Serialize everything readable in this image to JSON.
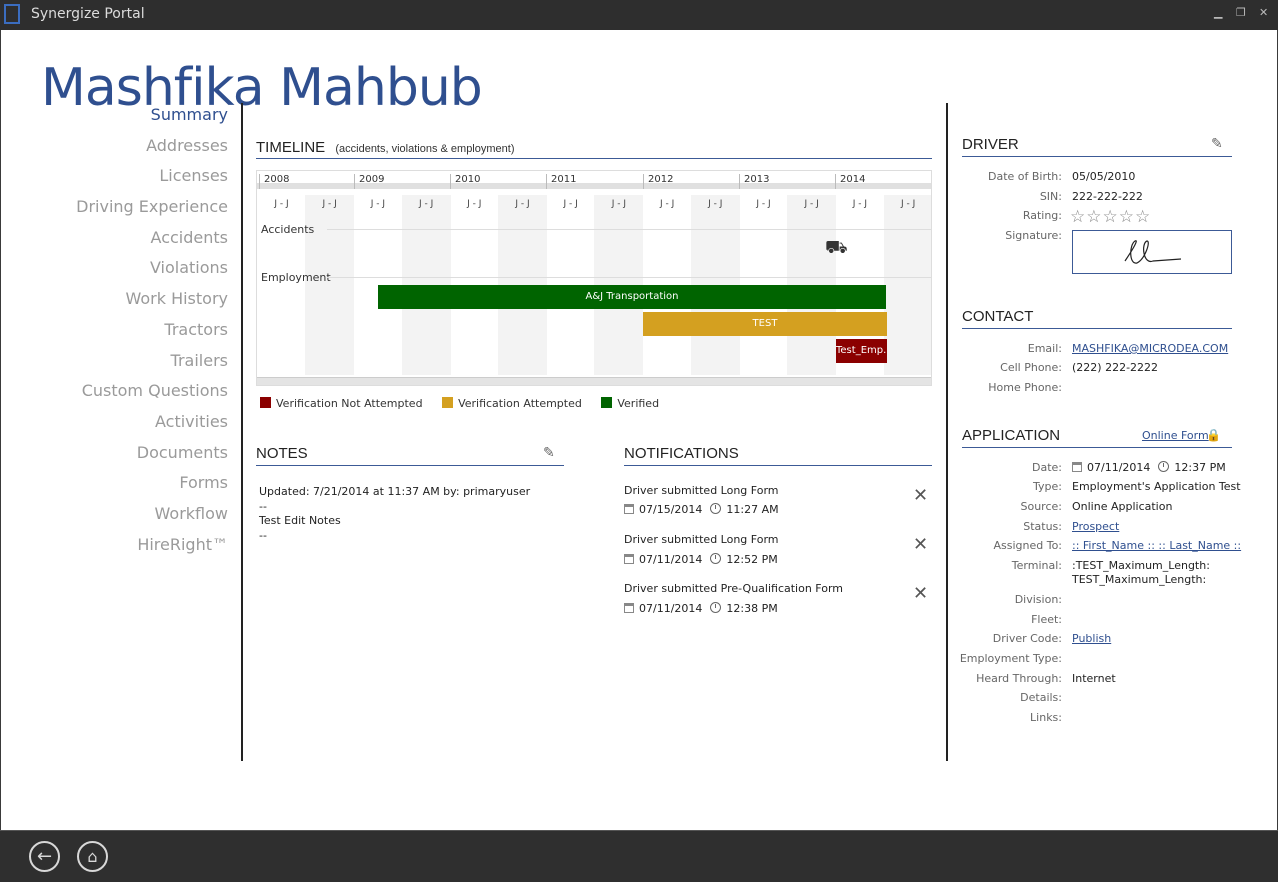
{
  "window": {
    "title": "Synergize Portal"
  },
  "page": {
    "title": "Mashfika Mahbub"
  },
  "nav": [
    "Summary",
    "Addresses",
    "Licenses",
    "Driving Experience",
    "Accidents",
    "Violations",
    "Work History",
    "Tractors",
    "Trailers",
    "Custom Questions",
    "Activities",
    "Documents",
    "Forms",
    "Workflow",
    "HireRight™"
  ],
  "timeline": {
    "title": "TIMELINE",
    "subtitle": "(accidents, violations & employment)",
    "years": [
      "2008",
      "2009",
      "2010",
      "2011",
      "2012",
      "2013",
      "2014"
    ],
    "half_label": "J - J",
    "accidents_label": "Accidents",
    "employment_label": "Employment",
    "bars": [
      {
        "label": "A&J Transportation",
        "color": "#006400"
      },
      {
        "label": "TEST",
        "color": "#d4a020"
      },
      {
        "label": "Test_Emp...",
        "color": "#8b0000"
      }
    ],
    "accident_icon": "car-crash-icon"
  },
  "legend": [
    {
      "label": "Verification Not Attempted",
      "color": "#8b0000"
    },
    {
      "label": "Verification Attempted",
      "color": "#d4a020"
    },
    {
      "label": "Verified",
      "color": "#006400"
    }
  ],
  "notes": {
    "title": "NOTES",
    "updated": "Updated: 7/21/2014 at 11:37 AM by: primaryuser",
    "sep1": "--",
    "text": "Test Edit Notes",
    "sep2": "--"
  },
  "notifications": {
    "title": "NOTIFICATIONS",
    "items": [
      {
        "title": "Driver submitted Long Form",
        "date": "07/15/2014",
        "time": "11:27 AM"
      },
      {
        "title": "Driver submitted Long Form",
        "date": "07/11/2014",
        "time": "12:52 PM"
      },
      {
        "title": "Driver submitted Pre-Qualification Form",
        "date": "07/11/2014",
        "time": "12:38 PM"
      }
    ]
  },
  "driver": {
    "title": "DRIVER",
    "dob_label": "Date of Birth:",
    "dob": "05/05/2010",
    "sin_label": "SIN:",
    "sin": "222-222-222",
    "rating_label": "Rating:",
    "rating": 0,
    "rating_max": 5,
    "signature_label": "Signature:"
  },
  "contact": {
    "title": "CONTACT",
    "email_label": "Email:",
    "email": "MASHFIKA@MICRODEA.COM",
    "cell_label": "Cell Phone:",
    "cell": "(222) 222-2222",
    "home_label": "Home Phone:",
    "home": ""
  },
  "application": {
    "title": "APPLICATION",
    "online_form": "Online Form",
    "date_label": "Date:",
    "date": "07/11/2014",
    "time": "12:37 PM",
    "type_label": "Type:",
    "type": "Employment's Application Test",
    "source_label": "Source:",
    "source": "Online Application",
    "status_label": "Status:",
    "status": "Prospect",
    "assigned_label": "Assigned To:",
    "assigned": ":: First_Name :: :: Last_Name ::",
    "terminal_label": "Terminal:",
    "terminal1": ":TEST_Maximum_Length:",
    "terminal2": "TEST_Maximum_Length:",
    "division_label": "Division:",
    "fleet_label": "Fleet:",
    "driver_code_label": "Driver Code:",
    "driver_code": "Publish",
    "employment_type_label": "Employment Type:",
    "heard_label": "Heard Through:",
    "heard": "Internet",
    "details_label": "Details:",
    "links_label": "Links:"
  }
}
